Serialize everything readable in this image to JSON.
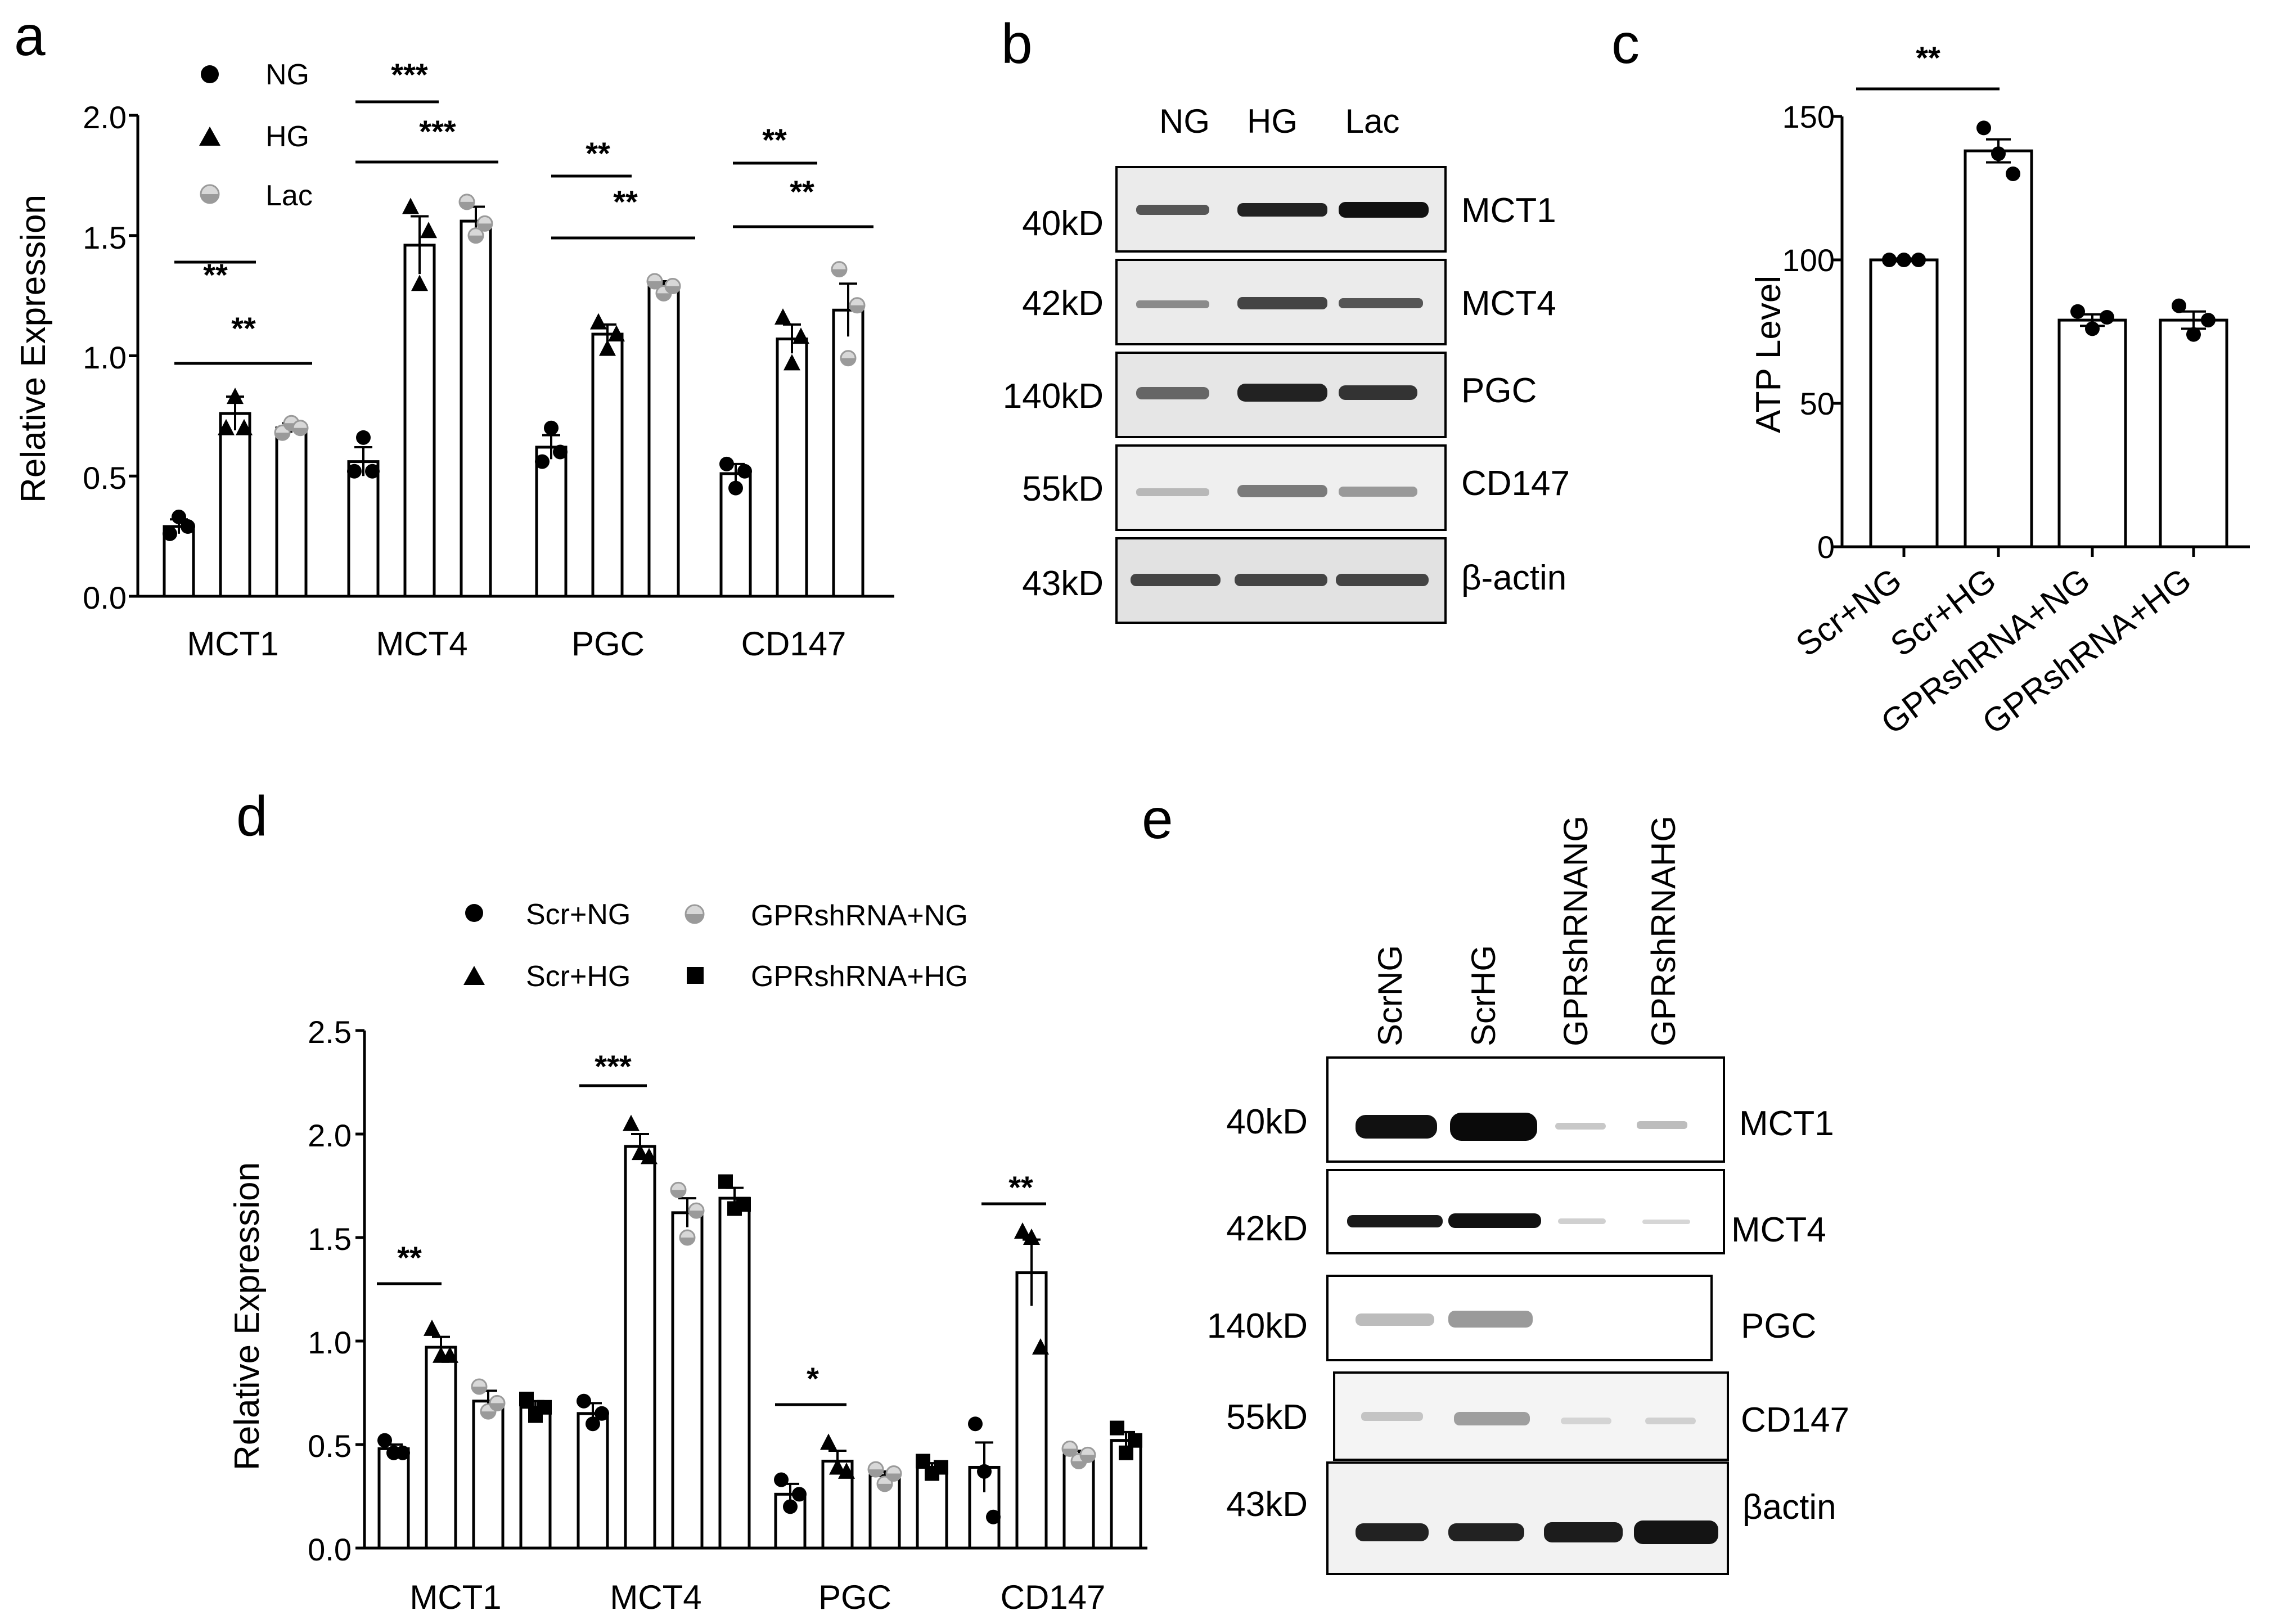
{
  "colors": {
    "ink": "#000000",
    "lac_gray": "#9a9a9a",
    "blot_bg": "#e4e4e4",
    "band": "#222222"
  },
  "panels": {
    "a": {
      "letter": "a",
      "ylabel": "Relative Expression",
      "ticks": [
        "0.0",
        "0.5",
        "1.0",
        "1.5",
        "2.0"
      ],
      "legend": [
        {
          "label": "NG",
          "marker": "circle"
        },
        {
          "label": "HG",
          "marker": "triangle"
        },
        {
          "label": "Lac",
          "marker": "half-circle"
        }
      ],
      "sig": [
        {
          "text": "**"
        },
        {
          "text": "**"
        },
        {
          "text": "***"
        },
        {
          "text": "***"
        },
        {
          "text": "**"
        },
        {
          "text": "**"
        },
        {
          "text": "**"
        },
        {
          "text": "**"
        }
      ]
    },
    "b": {
      "letter": "b",
      "lanes": [
        "NG",
        "HG",
        "Lac"
      ],
      "rows": [
        {
          "kd": "40kD",
          "protein": "MCT1"
        },
        {
          "kd": "42kD",
          "protein": "MCT4"
        },
        {
          "kd": "140kD",
          "protein": "PGC"
        },
        {
          "kd": "55kD",
          "protein": "CD147"
        },
        {
          "kd": "43kD",
          "protein": "β-actin"
        }
      ]
    },
    "c": {
      "letter": "c",
      "ylabel": "ATP Level",
      "ticks": [
        "0",
        "50",
        "100",
        "150"
      ],
      "sig": [
        {
          "text": "**"
        }
      ]
    },
    "d": {
      "letter": "d",
      "ylabel": "Relative Expression",
      "ticks": [
        "0.0",
        "0.5",
        "1.0",
        "1.5",
        "2.0",
        "2.5"
      ],
      "legend": [
        {
          "label": "Scr+NG",
          "marker": "circle"
        },
        {
          "label": "Scr+HG",
          "marker": "triangle"
        },
        {
          "label": "GPRshRNA+NG",
          "marker": "half-circle"
        },
        {
          "label": "GPRshRNA+HG",
          "marker": "square"
        }
      ],
      "sig": [
        {
          "text": "**"
        },
        {
          "text": "***"
        },
        {
          "text": "*"
        },
        {
          "text": "**"
        }
      ]
    },
    "e": {
      "letter": "e",
      "lanes": [
        "ScrNG",
        "ScrHG",
        "GPRshRNANG",
        "GPRshRNAHG"
      ],
      "rows": [
        {
          "kd": "40kD",
          "protein": "MCT1"
        },
        {
          "kd": "42kD",
          "protein": "MCT4"
        },
        {
          "kd": "140kD",
          "protein": "PGC"
        },
        {
          "kd": "55kD",
          "protein": "CD147"
        },
        {
          "kd": "43kD",
          "protein": "βactin"
        }
      ]
    }
  },
  "chart_data": [
    {
      "panel": "a",
      "type": "bar",
      "ylabel": "Relative Expression",
      "ylim": [
        0,
        2.0
      ],
      "categories": [
        "MCT1",
        "MCT4",
        "PGC",
        "CD147"
      ],
      "series": [
        {
          "name": "NG",
          "values": [
            0.29,
            0.56,
            0.62,
            0.51
          ],
          "sem": [
            0.03,
            0.06,
            0.05,
            0.04
          ],
          "points": [
            [
              0.26,
              0.33,
              0.29
            ],
            [
              0.52,
              0.66,
              0.52
            ],
            [
              0.56,
              0.7,
              0.6
            ],
            [
              0.55,
              0.45,
              0.52
            ]
          ]
        },
        {
          "name": "HG",
          "values": [
            0.76,
            1.46,
            1.09,
            1.07
          ],
          "sem": [
            0.07,
            0.12,
            0.04,
            0.06
          ],
          "points": [
            [
              0.7,
              0.83,
              0.7
            ],
            [
              1.62,
              1.3,
              1.52
            ],
            [
              1.14,
              1.03,
              1.09
            ],
            [
              1.16,
              0.97,
              1.08
            ]
          ]
        },
        {
          "name": "Lac",
          "values": [
            0.7,
            1.56,
            1.29,
            1.19
          ],
          "sem": [
            0.02,
            0.06,
            0.02,
            0.11
          ],
          "points": [
            [
              0.68,
              0.72,
              0.7
            ],
            [
              1.64,
              1.5,
              1.55
            ],
            [
              1.31,
              1.26,
              1.29
            ],
            [
              1.36,
              0.99,
              1.21
            ]
          ]
        }
      ]
    },
    {
      "panel": "c",
      "type": "bar",
      "ylabel": "ATP Level",
      "ylim": [
        0,
        150
      ],
      "categories": [
        "Scr+NG",
        "Scr+HG",
        "GPRshRNA+NG",
        "GPRshRNA+HG"
      ],
      "values": [
        100,
        138,
        79,
        79
      ],
      "sem": [
        0.5,
        4,
        2,
        3
      ],
      "points": [
        [
          100,
          100,
          100
        ],
        [
          146,
          137,
          130
        ],
        [
          82,
          76,
          80
        ],
        [
          84,
          74,
          79
        ]
      ]
    },
    {
      "panel": "d",
      "type": "bar",
      "ylabel": "Relative Expression",
      "ylim": [
        0,
        2.5
      ],
      "categories": [
        "MCT1",
        "MCT4",
        "PGC",
        "CD147"
      ],
      "series": [
        {
          "name": "Scr+NG",
          "values": [
            0.48,
            0.65,
            0.26,
            0.39
          ],
          "sem": [
            0.02,
            0.05,
            0.05,
            0.12
          ],
          "points": [
            [
              0.52,
              0.46,
              0.46
            ],
            [
              0.71,
              0.6,
              0.65
            ],
            [
              0.33,
              0.2,
              0.26
            ],
            [
              0.6,
              0.37,
              0.15
            ]
          ]
        },
        {
          "name": "Scr+HG",
          "values": [
            0.97,
            1.94,
            0.42,
            1.33
          ],
          "sem": [
            0.05,
            0.06,
            0.05,
            0.16
          ],
          "points": [
            [
              1.06,
              0.93,
              0.93
            ],
            [
              2.05,
              1.91,
              1.89
            ],
            [
              0.51,
              0.39,
              0.37
            ],
            [
              1.53,
              1.5,
              0.97
            ]
          ]
        },
        {
          "name": "GPRshRNA+NG",
          "values": [
            0.71,
            1.62,
            0.35,
            0.45
          ],
          "sem": [
            0.05,
            0.07,
            0.02,
            0.02
          ],
          "points": [
            [
              0.78,
              0.66,
              0.7
            ],
            [
              1.73,
              1.5,
              1.63
            ],
            [
              0.38,
              0.31,
              0.36
            ],
            [
              0.48,
              0.42,
              0.45
            ]
          ]
        },
        {
          "name": "GPRshRNA+HG",
          "values": [
            0.68,
            1.69,
            0.39,
            0.52
          ],
          "sem": [
            0.03,
            0.05,
            0.02,
            0.04
          ],
          "points": [
            [
              0.72,
              0.64,
              0.68
            ],
            [
              1.77,
              1.64,
              1.66
            ],
            [
              0.42,
              0.36,
              0.39
            ],
            [
              0.58,
              0.46,
              0.52
            ]
          ]
        }
      ]
    }
  ]
}
